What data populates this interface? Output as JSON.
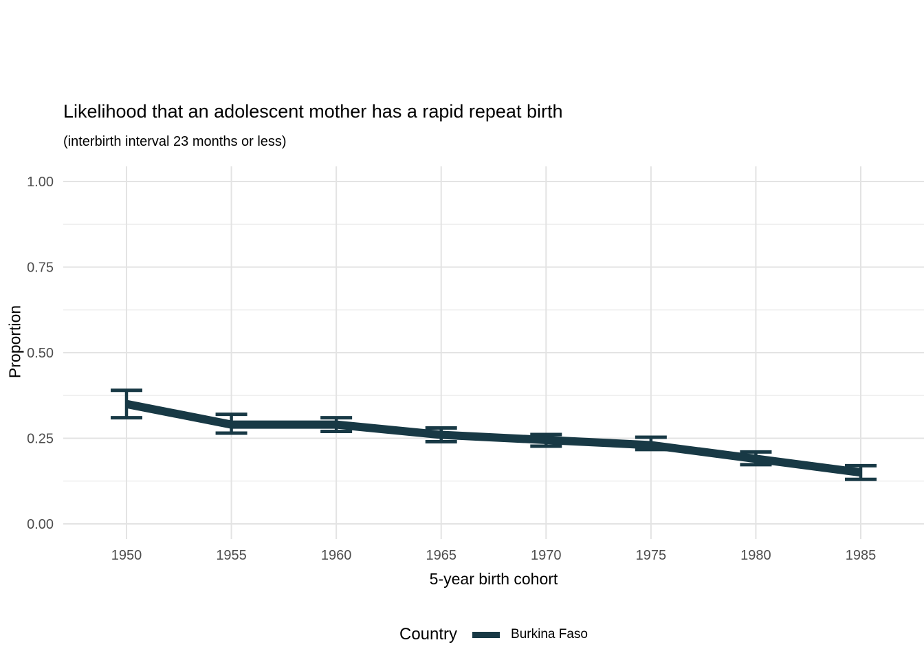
{
  "chart_data": {
    "type": "line",
    "title": "Likelihood that an adolescent mother has a rapid repeat birth",
    "subtitle": "(interbirth interval 23 months or less)",
    "xlabel": "5-year birth cohort",
    "ylabel": "Proportion",
    "x": [
      1950,
      1955,
      1960,
      1965,
      1970,
      1975,
      1980,
      1985
    ],
    "series": [
      {
        "name": "Burkina Faso",
        "color": "#183945",
        "values": [
          0.35,
          0.29,
          0.29,
          0.26,
          0.245,
          0.23,
          0.19,
          0.15
        ],
        "ci_low": [
          0.31,
          0.265,
          0.27,
          0.24,
          0.227,
          0.217,
          0.173,
          0.13
        ],
        "ci_high": [
          0.39,
          0.32,
          0.31,
          0.28,
          0.261,
          0.253,
          0.21,
          0.17
        ]
      }
    ],
    "xticks": [
      {
        "value": 1950,
        "label": "1950"
      },
      {
        "value": 1955,
        "label": "1955"
      },
      {
        "value": 1960,
        "label": "1960"
      },
      {
        "value": 1965,
        "label": "1965"
      },
      {
        "value": 1970,
        "label": "1970"
      },
      {
        "value": 1975,
        "label": "1975"
      },
      {
        "value": 1980,
        "label": "1980"
      },
      {
        "value": 1985,
        "label": "1985"
      }
    ],
    "yticks": [
      {
        "value": 0.0,
        "label": "0.00"
      },
      {
        "value": 0.25,
        "label": "0.25"
      },
      {
        "value": 0.5,
        "label": "0.50"
      },
      {
        "value": 0.75,
        "label": "0.75"
      },
      {
        "value": 1.0,
        "label": "1.00"
      }
    ],
    "ylim": [
      0,
      1
    ],
    "xlim": [
      1950,
      1985
    ],
    "grid": {
      "on": true,
      "major_color": "#e3e3e3",
      "minor_color": "#efefef",
      "minor_y_values": [
        0.125,
        0.375,
        0.625,
        0.875
      ]
    },
    "error_bars": true,
    "legend": {
      "position": "bottom",
      "title": "Country",
      "items": [
        {
          "label": "Burkina Faso",
          "color": "#183945"
        }
      ]
    },
    "colors": {
      "background": "#ffffff",
      "tick_text": "#4d4d4d",
      "text": "#000000"
    }
  }
}
